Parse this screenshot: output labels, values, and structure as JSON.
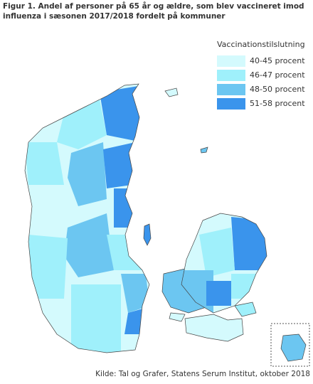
{
  "title": "Figur 1. Andel af personer på 65 år og ældre, som blev vaccineret imod influenza i sæsonen 2017/2018 fordelt på kommuner",
  "legend": {
    "title": "Vaccinationstilslutning",
    "items": [
      {
        "label": "40-45 procent",
        "color": "#d4fafd"
      },
      {
        "label": "46-47 procent",
        "color": "#9ff0fb"
      },
      {
        "label": "48-50 procent",
        "color": "#6cc6f1"
      },
      {
        "label": "51-58 procent",
        "color": "#3a94ec"
      }
    ]
  },
  "source": "Kilde: Tal og Grafer, Statens Serum Institut, oktober 2018"
}
